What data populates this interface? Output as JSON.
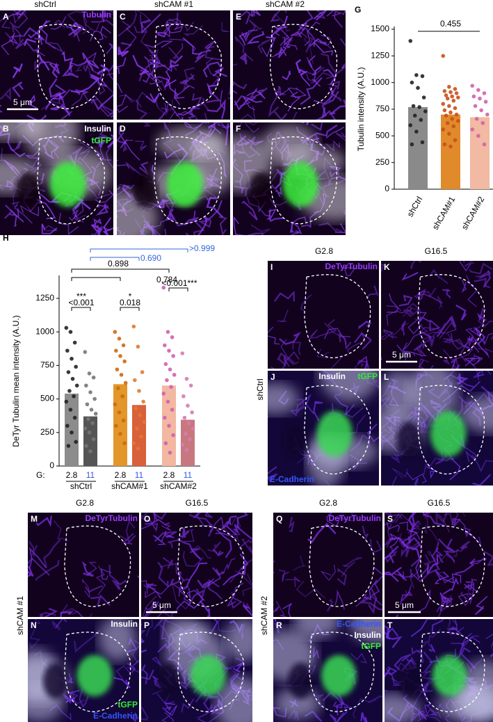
{
  "figure": {
    "panel_letters": [
      "A",
      "B",
      "C",
      "D",
      "E",
      "F",
      "I",
      "J",
      "K",
      "L",
      "M",
      "N",
      "O",
      "P",
      "Q",
      "R",
      "S",
      "T"
    ],
    "column_titles": [
      "shCtrl",
      "shCAM #1",
      "shCAM #2"
    ],
    "condition_titles": [
      "G2.8",
      "G16.5",
      "G2.8",
      "G16.5",
      "G2.8",
      "G16.5"
    ],
    "row_labels": [
      "shCtrl",
      "shCAM #1",
      "shCAM #2"
    ],
    "scale_bars": [
      "5 μm",
      "5 μm",
      "5 μm",
      "5 μm"
    ],
    "stain_labels": [
      {
        "text": "Tubulin",
        "color": "#9b3cff"
      },
      {
        "text": "Insulin",
        "color": "#ffffff"
      },
      {
        "text": "tGFP",
        "color": "#33ee33"
      },
      {
        "text": "DeTyrTubulin",
        "color": "#9b3cff"
      },
      {
        "text": "Insulin",
        "color": "#ffffff"
      },
      {
        "text": "tGFP",
        "color": "#33ee33"
      },
      {
        "text": "E-Cadherin",
        "color": "#3355ff"
      },
      {
        "text": "DeTyrTubulin",
        "color": "#9b3cff"
      },
      {
        "text": "Insulin",
        "color": "#ffffff"
      },
      {
        "text": "tGFP",
        "color": "#33ee33"
      },
      {
        "text": "E-Cadherin",
        "color": "#3355ff"
      },
      {
        "text": "DeTyrTubulin",
        "color": "#9b3cff"
      },
      {
        "text": "E-Cadherin",
        "color": "#3355ff"
      },
      {
        "text": "Insulin",
        "color": "#ffffff"
      },
      {
        "text": "tGFP",
        "color": "#33ee33"
      }
    ]
  },
  "chart_data": [
    {
      "type": "bar",
      "panel": "G",
      "ylabel": "Tubulin intensity (A.U.)",
      "categories": [
        "shCtrl",
        "shCAM#1",
        "shCAM#2"
      ],
      "values": [
        770,
        700,
        675
      ],
      "colors": [
        "#8a8a8a",
        "#e08a2c",
        "#f2b9a3"
      ],
      "point_colors": [
        "#222222",
        "#c8501a",
        "#d063a8"
      ],
      "points": [
        [
          1390,
          1070,
          1060,
          1000,
          950,
          860,
          780,
          770,
          730,
          690,
          650,
          600,
          540,
          440,
          420
        ],
        [
          1250,
          960,
          940,
          920,
          910,
          900,
          880,
          870,
          860,
          850,
          830,
          800,
          780,
          760,
          740,
          720,
          700,
          690,
          660,
          640,
          620,
          590,
          560,
          520,
          460,
          420,
          400
        ],
        [
          970,
          930,
          900,
          870,
          850,
          820,
          780,
          740,
          700,
          660,
          620,
          560,
          500,
          420
        ]
      ],
      "ylim": [
        0,
        1500
      ],
      "yticks": [
        0,
        250,
        500,
        750,
        1000,
        1250,
        1500
      ],
      "comparisons": [
        {
          "label": "0.455",
          "color": "#000000"
        }
      ]
    },
    {
      "type": "bar",
      "panel": "H",
      "ylabel": "DeTyr Tubulin mean intensity (A.U.)",
      "group_label": "G:",
      "categories": [
        "2.8",
        "11",
        "2.8",
        "11",
        "2.8",
        "11"
      ],
      "category_colors": [
        "#000000",
        "#3355ee",
        "#000000",
        "#3355ee",
        "#000000",
        "#3355ee"
      ],
      "groups": [
        "shCtrl",
        "shCAM#1",
        "shCAM#2"
      ],
      "values": [
        540,
        370,
        610,
        455,
        600,
        345
      ],
      "colors": [
        "#8c8c8c",
        "#555555",
        "#e3962a",
        "#d8603a",
        "#f2b8a2",
        "#c7787f"
      ],
      "point_colors": [
        "#222222",
        "#777777",
        "#cc6a10",
        "#e07a30",
        "#d060b0",
        "#d87ab5"
      ],
      "points": [
        [
          1030,
          1000,
          920,
          860,
          800,
          740,
          700,
          650,
          600,
          560,
          520,
          480,
          420,
          360,
          300,
          250,
          180,
          150
        ],
        [
          850,
          690,
          660,
          600,
          550,
          500,
          460,
          420,
          390,
          350,
          320,
          280,
          250,
          200,
          150,
          110
        ],
        [
          1000,
          950,
          900,
          860,
          820,
          780,
          720,
          680,
          620,
          580,
          520,
          460,
          400,
          340,
          300,
          240,
          170
        ],
        [
          1040,
          890,
          700,
          640,
          560,
          480,
          430,
          380,
          330,
          280,
          220,
          170,
          130
        ],
        [
          1330,
          1000,
          960,
          900,
          860,
          820,
          760,
          720,
          680,
          640,
          590,
          540,
          480,
          420,
          360,
          300,
          230,
          170,
          100
        ],
        [
          840,
          650,
          600,
          520,
          450,
          400,
          360,
          320,
          280,
          240,
          200,
          160,
          120
        ]
      ],
      "ylim": [
        0,
        1400
      ],
      "yticks": [
        0,
        250,
        500,
        750,
        1000,
        1250
      ],
      "comparisons": [
        {
          "label": ">0.999",
          "color": "#3366dd"
        },
        {
          "label": "0.690",
          "color": "#3366dd"
        },
        {
          "label": "0.898",
          "color": "#000000"
        },
        {
          "label": "0.784",
          "color": "#000000"
        },
        {
          "label": "<0.001",
          "color": "#000000"
        },
        {
          "label": "0.018",
          "color": "#000000"
        },
        {
          "label": "<0.001***",
          "color": "#000000"
        }
      ],
      "stars": [
        "***",
        "*"
      ]
    }
  ]
}
